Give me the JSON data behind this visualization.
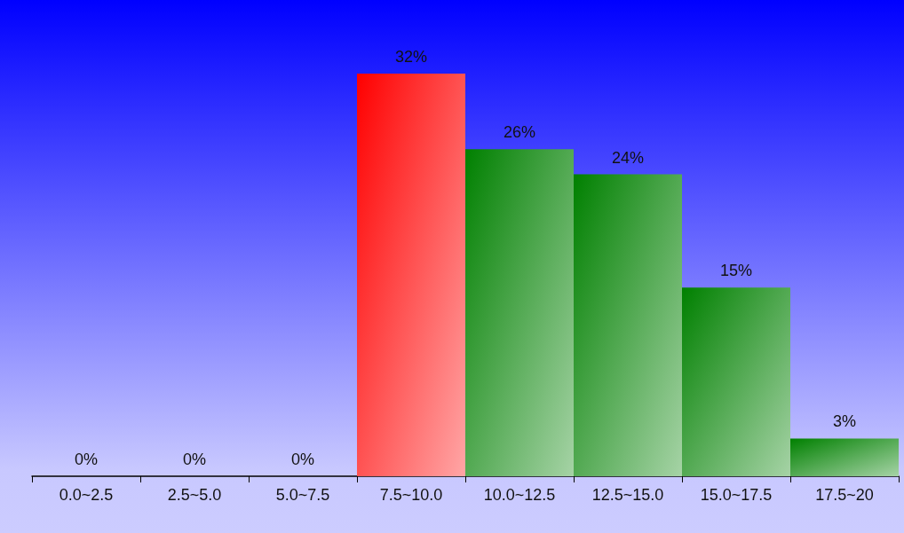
{
  "chart_data": {
    "type": "bar",
    "categories": [
      "0.0~2.5",
      "2.5~5.0",
      "5.0~7.5",
      "7.5~10.0",
      "10.0~12.5",
      "12.5~15.0",
      "15.0~17.5",
      "17.5~20"
    ],
    "values": [
      0,
      0,
      0,
      32,
      26,
      24,
      15,
      3
    ],
    "colors": [
      "#008000",
      "#008000",
      "#008000",
      "#ff0000",
      "#008000",
      "#008000",
      "#008000",
      "#008000"
    ],
    "value_labels": [
      "0%",
      "0%",
      "0%",
      "32%",
      "26%",
      "24%",
      "15%",
      "3%"
    ]
  }
}
